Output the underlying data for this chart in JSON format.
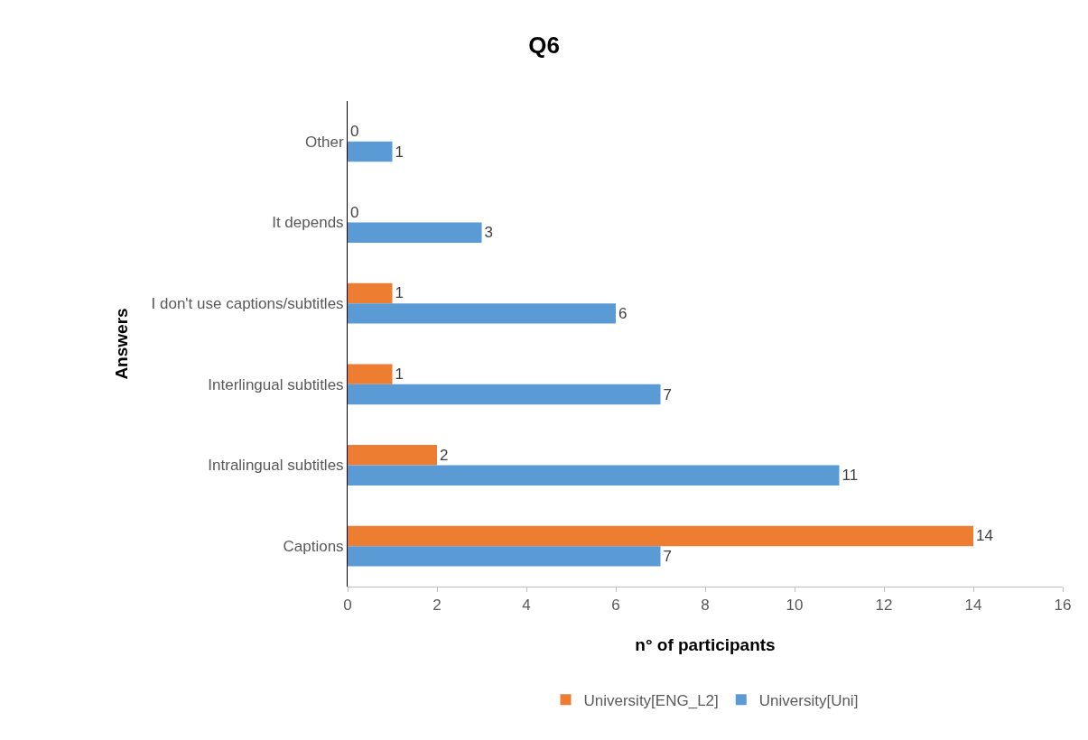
{
  "chart_data": {
    "type": "bar",
    "orientation": "horizontal",
    "title": "Q6",
    "xlabel": "n° of participants",
    "ylabel": "Answers",
    "categories": [
      "Other",
      "It depends",
      "I don't use captions/subtitles",
      "Interlingual subtitles",
      "Intralingual subtitles",
      "Captions"
    ],
    "series": [
      {
        "name": "University[ENG_L2]",
        "color": "#ed7d31",
        "values": [
          0,
          0,
          1,
          1,
          2,
          14
        ]
      },
      {
        "name": "University[Uni]",
        "color": "#5b9bd5",
        "values": [
          1,
          3,
          6,
          7,
          11,
          7
        ]
      }
    ],
    "xlim": [
      0,
      16
    ],
    "xticks": [
      0,
      2,
      4,
      6,
      8,
      10,
      12,
      14,
      16
    ],
    "data_labels": true,
    "legend": "bottom"
  }
}
